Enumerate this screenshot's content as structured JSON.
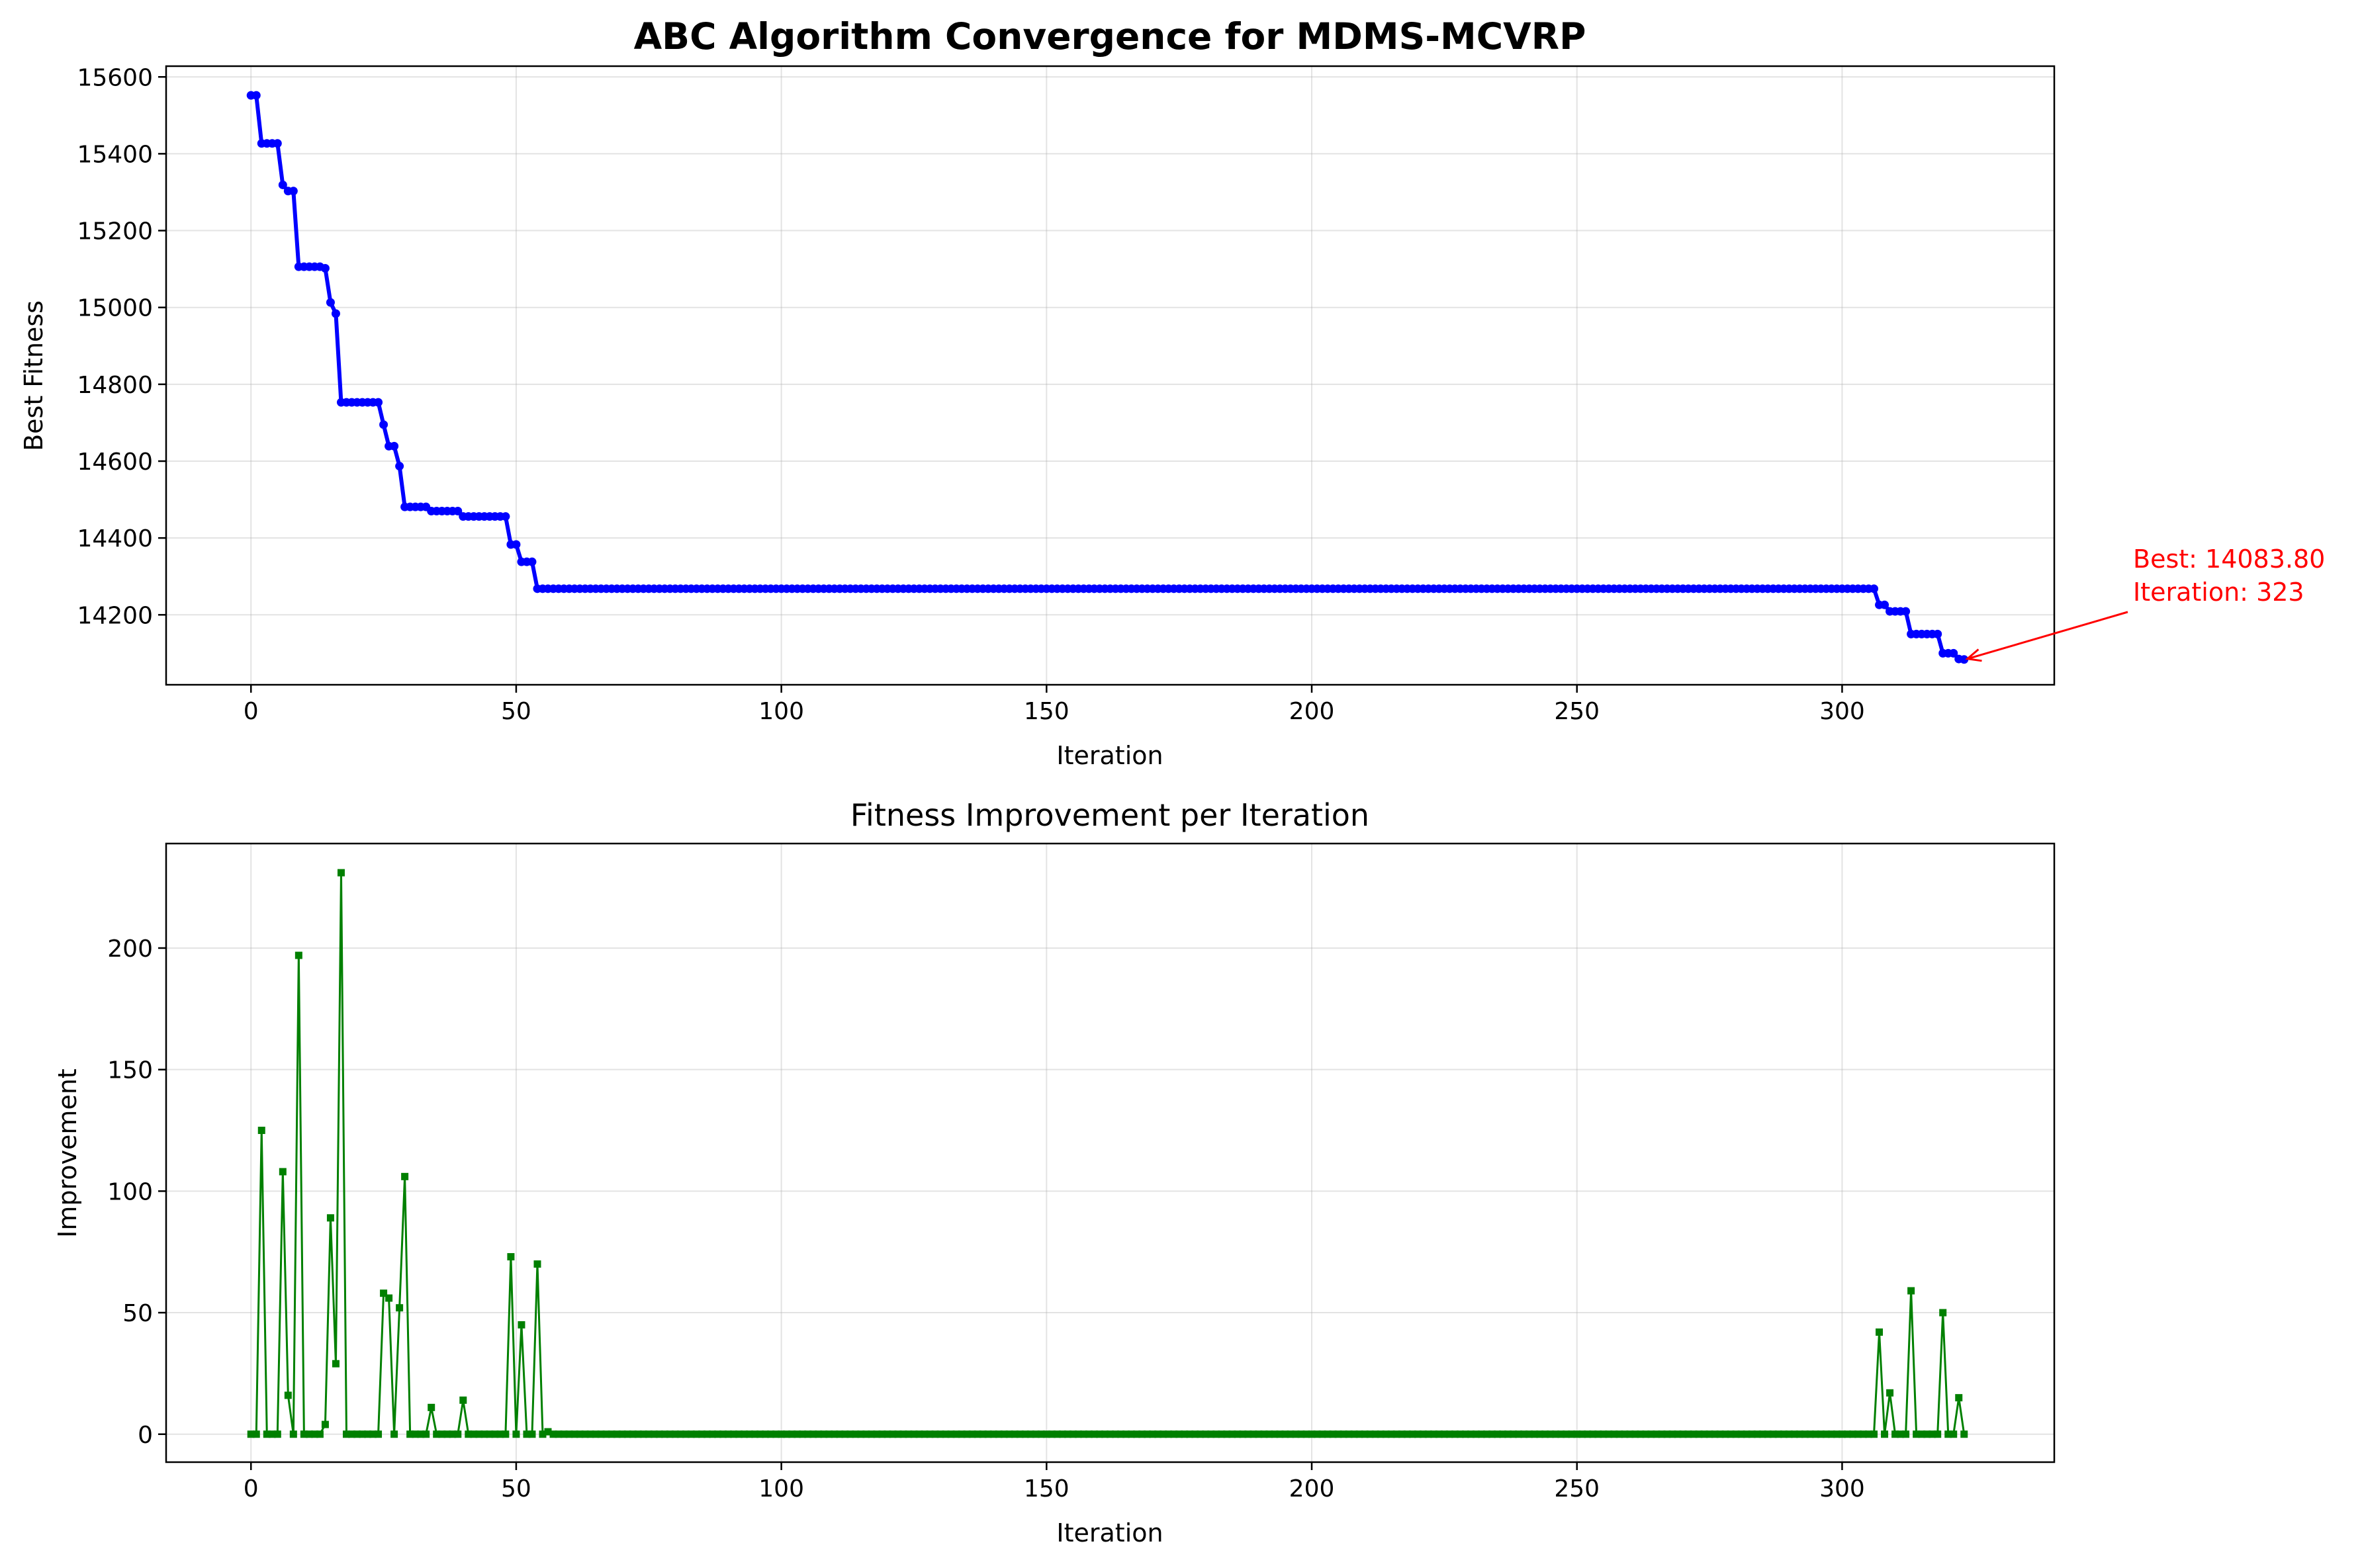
{
  "chart_data": [
    {
      "type": "line",
      "title": "ABC Algorithm Convergence for MDMS-MCVRP",
      "xlabel": "Iteration",
      "ylabel": "Best Fitness",
      "xlim": [
        -16,
        340
      ],
      "ylim": [
        14018,
        15628
      ],
      "xticks": [
        0,
        50,
        100,
        150,
        200,
        250,
        300
      ],
      "yticks": [
        14200,
        14400,
        14600,
        14800,
        15000,
        15200,
        15400,
        15600
      ],
      "grid": true,
      "series": [
        {
          "color": "#0000ff",
          "marker": "circle",
          "steps": [
            [
              0,
              15552
            ],
            [
              2,
              15427
            ],
            [
              6,
              15319
            ],
            [
              7,
              15303
            ],
            [
              9,
              15106
            ],
            [
              14,
              15102
            ],
            [
              15,
              15013
            ],
            [
              16,
              14984
            ],
            [
              17,
              14753
            ],
            [
              25,
              14695
            ],
            [
              26,
              14639
            ],
            [
              28,
              14587
            ],
            [
              29,
              14481
            ],
            [
              34,
              14470
            ],
            [
              40,
              14456
            ],
            [
              49,
              14383
            ],
            [
              51,
              14338
            ],
            [
              54,
              14268
            ],
            [
              307,
              14226
            ],
            [
              309,
              14209
            ],
            [
              313,
              14150
            ],
            [
              319,
              14100
            ],
            [
              322,
              14085
            ],
            [
              323,
              14083.8
            ]
          ],
          "n_points": 324
        }
      ],
      "annotation": {
        "line1": "Best: 14083.80",
        "line2": "Iteration: 323",
        "x": 323,
        "y": 14083.8,
        "color": "#ff0000"
      }
    },
    {
      "type": "line",
      "title": "Fitness Improvement per Iteration",
      "xlabel": "Iteration",
      "ylabel": "Improvement",
      "xlim": [
        -16,
        340
      ],
      "ylim": [
        -11.5,
        243
      ],
      "xticks": [
        0,
        50,
        100,
        150,
        200,
        250,
        300
      ],
      "yticks": [
        0,
        50,
        100,
        150,
        200
      ],
      "grid": true,
      "series": [
        {
          "color": "#008000",
          "marker": "square",
          "n_points": 324,
          "nonzero": [
            [
              2,
              125
            ],
            [
              6,
              108
            ],
            [
              7,
              16
            ],
            [
              9,
              197
            ],
            [
              14,
              4
            ],
            [
              15,
              89
            ],
            [
              16,
              29
            ],
            [
              17,
              231
            ],
            [
              25,
              58
            ],
            [
              26,
              56
            ],
            [
              28,
              52
            ],
            [
              29,
              106
            ],
            [
              34,
              11
            ],
            [
              40,
              14
            ],
            [
              49,
              73
            ],
            [
              51,
              45
            ],
            [
              54,
              70
            ],
            [
              56,
              1
            ],
            [
              307,
              42
            ],
            [
              309,
              17
            ],
            [
              313,
              59
            ],
            [
              319,
              50
            ],
            [
              322,
              15
            ]
          ]
        }
      ]
    }
  ]
}
